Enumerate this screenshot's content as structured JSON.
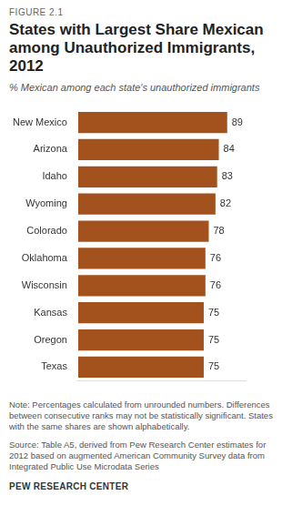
{
  "chart_data": {
    "type": "bar",
    "figure_label": "FIGURE 2.1",
    "title": "States with Largest Share Mexican among Unauthorized Immigrants, 2012",
    "subtitle": "% Mexican among each state's unauthorized immigrants",
    "categories": [
      "New Mexico",
      "Arizona",
      "Idaho",
      "Wyoming",
      "Colorado",
      "Oklahoma",
      "Wisconsin",
      "Kansas",
      "Oregon",
      "Texas"
    ],
    "values": [
      89,
      84,
      83,
      82,
      78,
      76,
      76,
      75,
      75,
      75
    ],
    "color": "#a3521e",
    "orientation": "horizontal",
    "xlim": [
      0,
      100
    ],
    "grid": false,
    "data_labels": true,
    "tick_labels": "y",
    "note": "Note: Percentages calculated from unrounded numbers. Differences between consecutive ranks may not be statistically significant. States with the same shares are shown alphabetically.",
    "source": "Source: Table A5, derived from Pew Research Center estimates for 2012 based on augmented American Community Survey data from Integrated Public Use Microdata Series",
    "credit": "PEW RESEARCH CENTER"
  }
}
